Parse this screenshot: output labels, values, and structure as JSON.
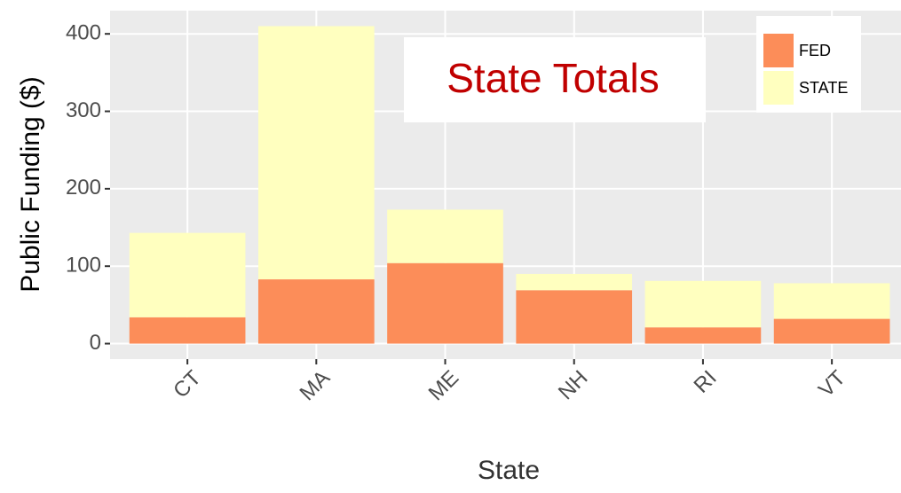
{
  "chart_data": {
    "type": "stacked_bar",
    "title": "State Totals",
    "x_label": "State",
    "y_label": "Public Funding  ($)",
    "categories": [
      "CT",
      "MA",
      "ME",
      "NH",
      "RI",
      "VT"
    ],
    "series": [
      {
        "name": "FED",
        "color": "#fc8d59",
        "values": [
          34,
          83,
          104,
          69,
          21,
          32
        ]
      },
      {
        "name": "STATE",
        "color": "#ffffbf",
        "values": [
          109,
          327,
          69,
          21,
          60,
          46
        ]
      }
    ],
    "ylim": [
      -20,
      430
    ],
    "yticks": [
      0,
      100,
      200,
      300,
      400
    ],
    "grid": true,
    "legend": "top-right"
  }
}
